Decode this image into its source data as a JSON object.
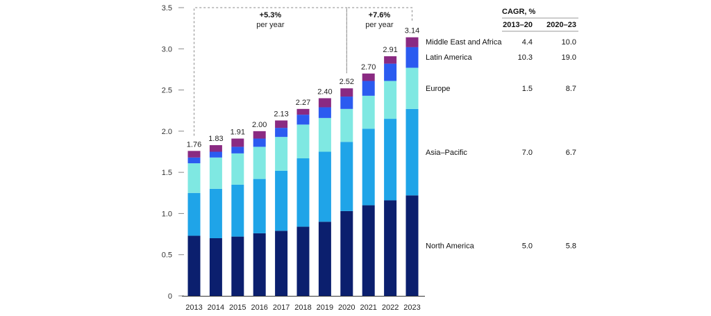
{
  "chart_data": {
    "type": "bar",
    "stacked": true,
    "categories": [
      "2013",
      "2014",
      "2015",
      "2016",
      "2017",
      "2018",
      "2019",
      "2020",
      "2021",
      "2022",
      "2023"
    ],
    "series": [
      {
        "name": "North America",
        "values": [
          0.73,
          0.7,
          0.72,
          0.76,
          0.79,
          0.84,
          0.9,
          1.03,
          1.1,
          1.16,
          1.22
        ],
        "color": "#0b1f6e"
      },
      {
        "name": "Asia–Pacific",
        "values": [
          0.52,
          0.6,
          0.63,
          0.66,
          0.73,
          0.83,
          0.85,
          0.84,
          0.93,
          0.99,
          1.05
        ],
        "color": "#1fa4e8"
      },
      {
        "name": "Europe",
        "values": [
          0.36,
          0.38,
          0.38,
          0.39,
          0.41,
          0.41,
          0.41,
          0.4,
          0.4,
          0.46,
          0.5
        ],
        "color": "#7fe8e2"
      },
      {
        "name": "Latin America",
        "values": [
          0.07,
          0.07,
          0.08,
          0.1,
          0.11,
          0.12,
          0.13,
          0.15,
          0.18,
          0.21,
          0.25
        ],
        "color": "#2b5bf0"
      },
      {
        "name": "Middle East and Africa",
        "values": [
          0.08,
          0.08,
          0.1,
          0.09,
          0.09,
          0.07,
          0.11,
          0.1,
          0.09,
          0.09,
          0.12
        ],
        "color": "#8a2a82"
      }
    ],
    "totals": [
      "1.76",
      "1.83",
      "1.91",
      "2.00",
      "2.13",
      "2.27",
      "2.40",
      "2.52",
      "2.70",
      "2.91",
      "3.14"
    ],
    "yticks": [
      "0",
      "0.5",
      "1.0",
      "1.5",
      "2.0",
      "2.5",
      "3.0",
      "3.5"
    ],
    "ylim": [
      0,
      3.5
    ],
    "annotations": [
      {
        "value": "+5.3%",
        "text": "per year",
        "from": "2013",
        "to": "2020"
      },
      {
        "value": "+7.6%",
        "text": "per year",
        "from": "2020",
        "to": "2023"
      }
    ],
    "cagr_table": {
      "title": "CAGR, %",
      "col1": "2013–20",
      "col2": "2020–23",
      "rows": [
        {
          "region": "Middle East and Africa",
          "v1": "4.4",
          "v2": "10.0"
        },
        {
          "region": "Latin America",
          "v1": "10.3",
          "v2": "19.0"
        },
        {
          "region": "Europe",
          "v1": "1.5",
          "v2": "8.7"
        },
        {
          "region": "Asia–Pacific",
          "v1": "7.0",
          "v2": "6.7"
        },
        {
          "region": "North America",
          "v1": "5.0",
          "v2": "5.8"
        }
      ]
    }
  }
}
